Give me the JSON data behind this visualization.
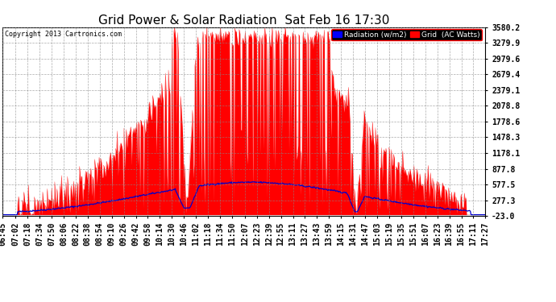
{
  "title": "Grid Power & Solar Radiation  Sat Feb 16 17:30",
  "copyright": "Copyright 2013 Cartronics.com",
  "ylabel_right_ticks": [
    3580.2,
    3279.9,
    2979.6,
    2679.4,
    2379.1,
    2078.8,
    1778.6,
    1478.3,
    1178.1,
    877.8,
    577.5,
    277.3,
    -23.0
  ],
  "ymin": -23.0,
  "ymax": 3580.2,
  "legend_radiation_label": "Radiation (w/m2)",
  "legend_grid_label": "Grid  (AC Watts)",
  "legend_radiation_color": "#0000ff",
  "legend_grid_color": "#ff0000",
  "fill_color": "#ff0000",
  "line_color": "#0000cc",
  "bg_color": "#ffffff",
  "plot_bg_color": "#ffffff",
  "grid_color": "#888888",
  "title_fontsize": 11,
  "tick_fontsize": 7,
  "x_start_time": "06:45",
  "x_end_time": "17:27"
}
